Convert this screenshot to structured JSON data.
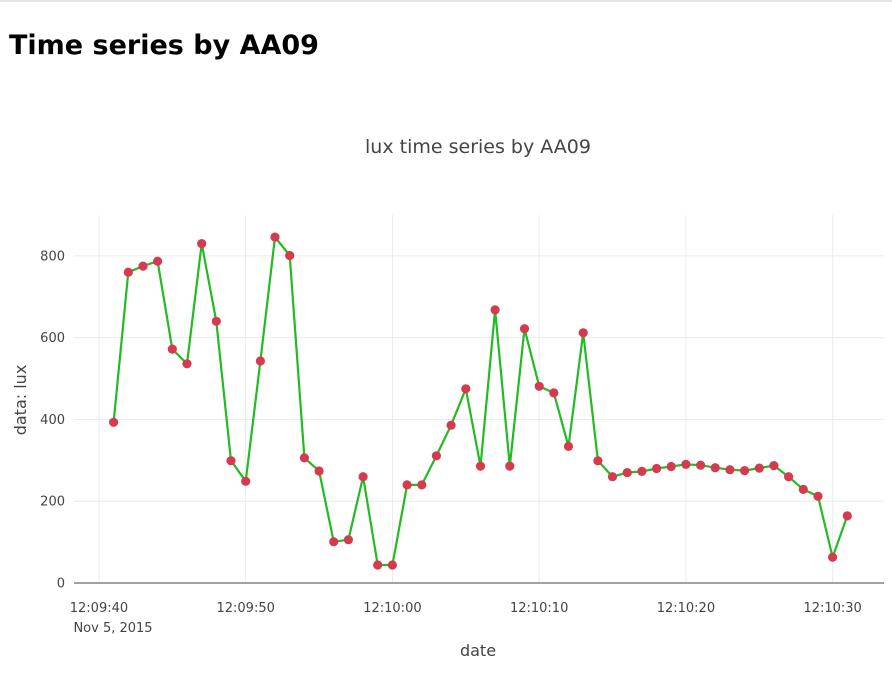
{
  "page": {
    "heading": "Time series by AA09"
  },
  "chart_data": {
    "type": "line",
    "title": "lux time series by AA09",
    "xlabel": "date",
    "ylabel": "data: lux",
    "x_start": "12:09:41",
    "x_date": "Nov 5, 2015",
    "x_step_seconds": 1,
    "xlim": [
      "12:09:38.3",
      "12:10:33.5"
    ],
    "ylim": [
      0,
      900
    ],
    "x_ticks": [
      "12:09:40",
      "12:09:50",
      "12:10:00",
      "12:10:10",
      "12:10:20",
      "12:10:30"
    ],
    "y_ticks": [
      0,
      200,
      400,
      600,
      800
    ],
    "grid": true,
    "legend": "none",
    "line_color": "#22bb22",
    "marker_color": "#d63a4f",
    "series": [
      {
        "values": [
          393,
          760,
          775,
          787,
          572,
          536,
          830,
          640,
          299,
          249,
          543,
          846,
          801,
          306,
          274,
          101,
          106,
          260,
          44,
          44,
          240,
          240,
          311,
          386,
          475,
          286,
          668,
          286,
          622,
          481,
          465,
          334,
          612,
          299,
          260,
          270,
          273,
          280,
          285,
          290,
          288,
          282,
          277,
          275,
          281,
          287,
          260,
          229,
          212,
          63,
          164
        ]
      }
    ]
  }
}
